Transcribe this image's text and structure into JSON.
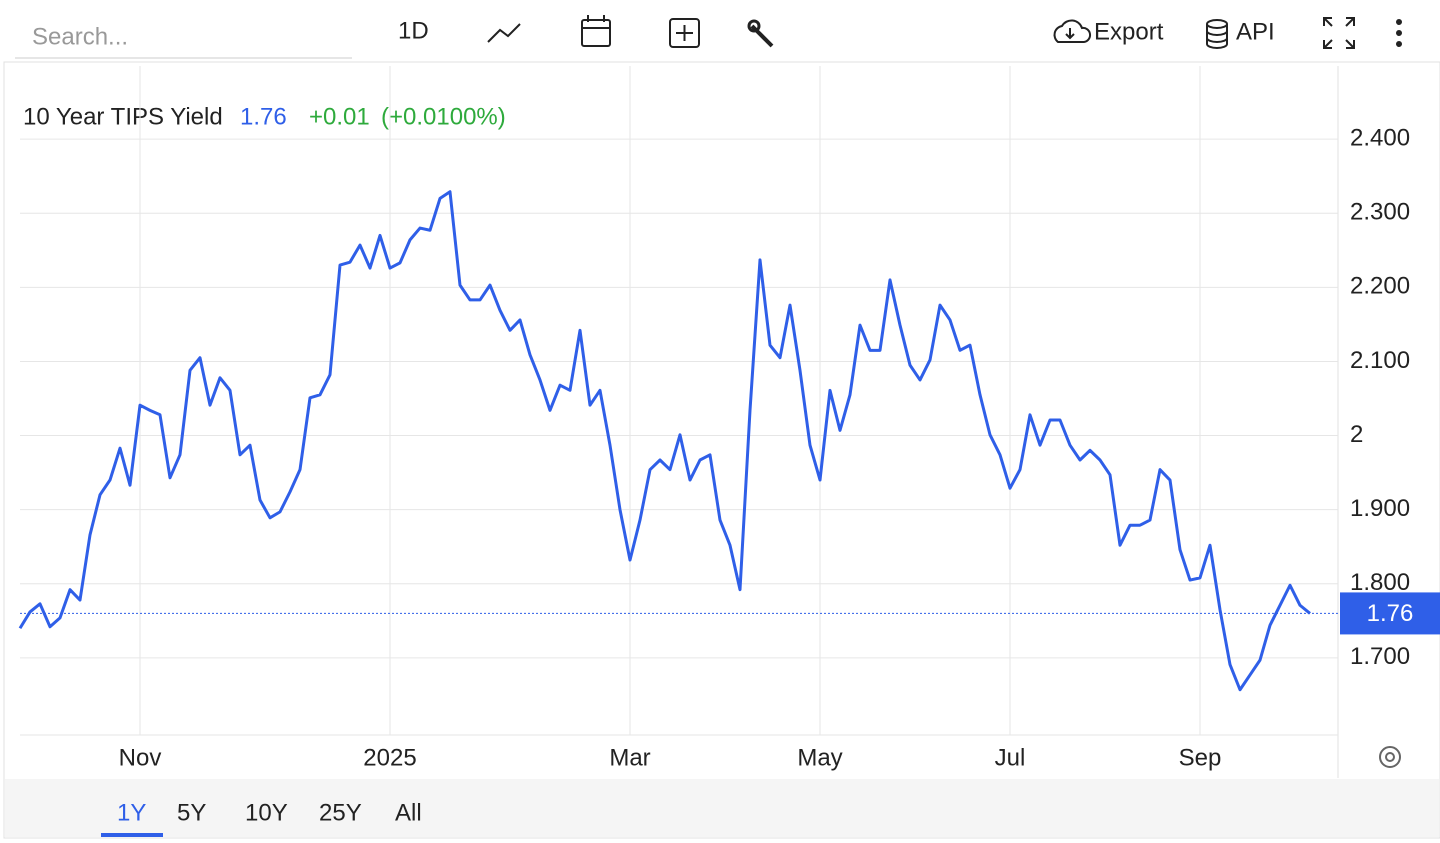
{
  "chart_data": {
    "type": "line",
    "title": "10 Year TIPS Yield",
    "last": 1.76,
    "change": "+0.01",
    "change_pct": "(+0.0100%)",
    "categories": [
      null,
      null,
      null,
      null,
      null,
      null,
      null,
      null,
      null,
      null,
      null,
      null,
      "Nov",
      null,
      null,
      null,
      null,
      null,
      null,
      null,
      null,
      null,
      null,
      null,
      null,
      null,
      null,
      null,
      null,
      null,
      null,
      null,
      null,
      null,
      null,
      null,
      null,
      "2025",
      null,
      null,
      null,
      null,
      null,
      null,
      null,
      null,
      null,
      null,
      null,
      null,
      null,
      null,
      null,
      null,
      null,
      null,
      null,
      null,
      null,
      null,
      null,
      "Mar",
      null,
      null,
      null,
      null,
      null,
      null,
      null,
      null,
      null,
      null,
      null,
      null,
      null,
      null,
      null,
      null,
      null,
      null,
      "May",
      null,
      null,
      null,
      null,
      null,
      null,
      null,
      null,
      null,
      null,
      null,
      null,
      null,
      null,
      null,
      null,
      null,
      null,
      "Jul",
      null,
      null,
      null,
      null,
      null,
      null,
      null,
      null,
      null,
      null,
      null,
      null,
      null,
      null,
      null,
      null,
      null,
      null,
      "Sep",
      null,
      null,
      null,
      null,
      null,
      null,
      null,
      null,
      null,
      null,
      null
    ],
    "series": [
      {
        "name": "10 Year TIPS Yield",
        "color": "#2f5fe8",
        "values": [
          1.74,
          1.762,
          1.773,
          1.742,
          1.754,
          1.792,
          1.778,
          1.866,
          1.92,
          1.94,
          1.983,
          1.933,
          2.041,
          2.034,
          2.028,
          1.943,
          1.974,
          2.088,
          2.105,
          2.041,
          2.078,
          2.061,
          1.974,
          1.987,
          1.913,
          1.889,
          1.897,
          1.924,
          1.954,
          2.051,
          2.055,
          2.082,
          2.23,
          2.234,
          2.257,
          2.226,
          2.27,
          2.226,
          2.233,
          2.264,
          2.28,
          2.277,
          2.32,
          2.329,
          2.203,
          2.183,
          2.183,
          2.203,
          2.169,
          2.142,
          2.156,
          2.109,
          2.075,
          2.034,
          2.068,
          2.061,
          2.142,
          2.041,
          2.061,
          1.987,
          1.9,
          1.832,
          1.886,
          1.954,
          1.967,
          1.954,
          2.001,
          1.94,
          1.967,
          1.974,
          1.886,
          1.852,
          1.792,
          2.034,
          2.237,
          2.122,
          2.105,
          2.176,
          2.088,
          1.987,
          1.94,
          2.061,
          2.007,
          2.055,
          2.149,
          2.115,
          2.115,
          2.21,
          2.149,
          2.095,
          2.075,
          2.102,
          2.176,
          2.156,
          2.115,
          2.122,
          2.055,
          2.001,
          1.974,
          1.929,
          1.954,
          2.028,
          1.987,
          2.021,
          2.021,
          1.987,
          1.967,
          1.98,
          1.967,
          1.947,
          1.852,
          1.879,
          1.879,
          1.886,
          1.954,
          1.94,
          1.846,
          1.805,
          1.808,
          1.852,
          1.765,
          1.691,
          1.657,
          1.677,
          1.697,
          1.744,
          1.771,
          1.798,
          1.771,
          1.76
        ]
      }
    ],
    "ylim": [
      1.6,
      2.5
    ],
    "yticks": [
      {
        "value": 1.7,
        "label": "1.700"
      },
      {
        "value": 1.8,
        "label": "1.800"
      },
      {
        "value": 1.9,
        "label": "1.900"
      },
      2,
      {
        "value": 2.1,
        "label": "2.100"
      },
      {
        "value": 2.2,
        "label": "2.200"
      },
      {
        "value": 2.3,
        "label": "2.300"
      },
      {
        "value": 2.4,
        "label": "2.400"
      }
    ],
    "grid": true
  },
  "toolbar": {
    "search": "Search...",
    "interval": "1D",
    "export": "Export",
    "api": "API"
  },
  "ranges": [
    "1Y",
    "5Y",
    "10Y",
    "25Y",
    "All"
  ],
  "active_range": 0
}
